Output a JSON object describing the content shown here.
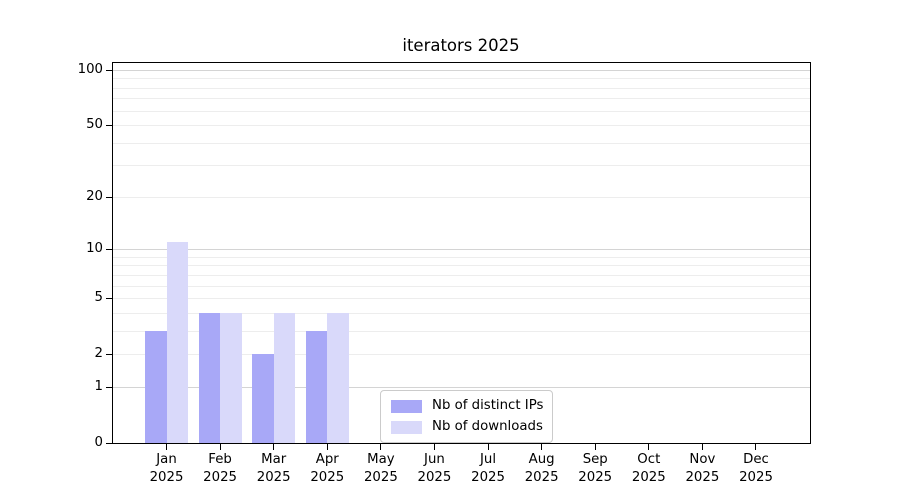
{
  "chart_data": {
    "type": "bar",
    "scale": "symlog",
    "title": "iterators 2025",
    "xlabel": "",
    "ylabel": "",
    "grid": true,
    "legend_position": "inside-bottom-center",
    "categories": [
      "Jan 2025",
      "Feb 2025",
      "Mar 2025",
      "Apr 2025",
      "May 2025",
      "Jun 2025",
      "Jul 2025",
      "Aug 2025",
      "Sep 2025",
      "Oct 2025",
      "Nov 2025",
      "Dec 2025"
    ],
    "series": [
      {
        "name": "Nb of distinct IPs",
        "color": "#a8a8f7",
        "values": [
          3,
          4,
          2,
          3,
          0,
          0,
          0,
          0,
          0,
          0,
          0,
          0
        ]
      },
      {
        "name": "Nb of downloads",
        "color": "#d9d9fa",
        "values": [
          11,
          4,
          4,
          4,
          0,
          0,
          0,
          0,
          0,
          0,
          0,
          0
        ]
      }
    ],
    "y_ticks": [
      0,
      1,
      2,
      5,
      10,
      20,
      50,
      100
    ],
    "ylim": [
      0,
      110
    ]
  },
  "colors": {
    "bar_distinct_ips": "#a8a8f7",
    "bar_downloads": "#d9d9fa",
    "grid_major": "#d4d4d4",
    "grid_minor": "#ededed",
    "axis": "#000000",
    "background": "#ffffff"
  }
}
